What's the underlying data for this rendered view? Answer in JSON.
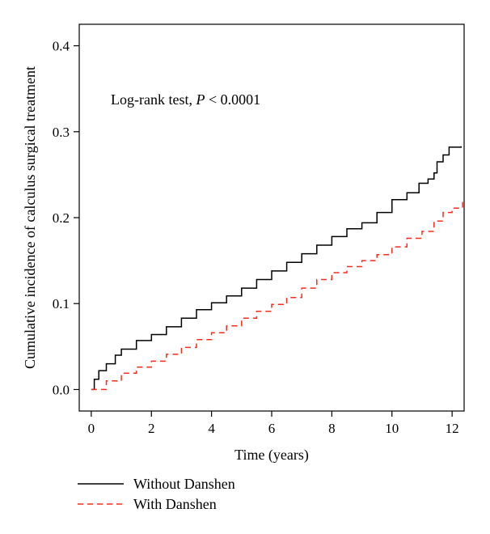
{
  "chart_data": {
    "type": "line",
    "title": "",
    "xlabel": "Time (years)",
    "ylabel": "Cumulative incidence of calculus surgical treatment",
    "xlim": [
      -0.4,
      12.4
    ],
    "ylim": [
      -0.025,
      0.425
    ],
    "x_ticks": [
      0,
      2,
      4,
      6,
      8,
      10,
      12
    ],
    "y_ticks": [
      0.0,
      0.1,
      0.2,
      0.3,
      0.4
    ],
    "x_tick_labels": [
      "0",
      "2",
      "4",
      "6",
      "8",
      "10",
      "12"
    ],
    "y_tick_labels": [
      "0.0",
      "0.1",
      "0.2",
      "0.3",
      "0.4"
    ],
    "grid": false,
    "legend_position": "bottom-left, outside plot",
    "annotation": {
      "prefix": "Log-rank test, ",
      "italic": "P",
      "suffix": " < 0.0001"
    },
    "series": [
      {
        "name": "Without Danshen",
        "color": "#000000",
        "style": "solid",
        "step": true,
        "points": [
          [
            0,
            0.0
          ],
          [
            0.1,
            0.012
          ],
          [
            0.25,
            0.022
          ],
          [
            0.5,
            0.03
          ],
          [
            0.8,
            0.04
          ],
          [
            1.0,
            0.047
          ],
          [
            1.5,
            0.057
          ],
          [
            2.0,
            0.064
          ],
          [
            2.5,
            0.073
          ],
          [
            3.0,
            0.083
          ],
          [
            3.5,
            0.093
          ],
          [
            4.0,
            0.101
          ],
          [
            4.5,
            0.109
          ],
          [
            5.0,
            0.118
          ],
          [
            5.5,
            0.128
          ],
          [
            6.0,
            0.138
          ],
          [
            6.5,
            0.148
          ],
          [
            7.0,
            0.158
          ],
          [
            7.5,
            0.168
          ],
          [
            8.0,
            0.178
          ],
          [
            8.5,
            0.187
          ],
          [
            9.0,
            0.194
          ],
          [
            9.5,
            0.206
          ],
          [
            10.0,
            0.221
          ],
          [
            10.5,
            0.229
          ],
          [
            10.9,
            0.24
          ],
          [
            11.2,
            0.245
          ],
          [
            11.4,
            0.252
          ],
          [
            11.5,
            0.265
          ],
          [
            11.7,
            0.273
          ],
          [
            11.9,
            0.282
          ],
          [
            12.3,
            0.283
          ]
        ]
      },
      {
        "name": "With Danshen",
        "color": "#ff2a1a",
        "style": "dashed",
        "step": true,
        "points": [
          [
            0,
            0.0
          ],
          [
            0.5,
            0.01
          ],
          [
            1.0,
            0.019
          ],
          [
            1.5,
            0.026
          ],
          [
            2.0,
            0.033
          ],
          [
            2.5,
            0.041
          ],
          [
            3.0,
            0.049
          ],
          [
            3.5,
            0.058
          ],
          [
            4.0,
            0.066
          ],
          [
            4.5,
            0.074
          ],
          [
            5.0,
            0.083
          ],
          [
            5.5,
            0.091
          ],
          [
            6.0,
            0.099
          ],
          [
            6.5,
            0.107
          ],
          [
            7.0,
            0.118
          ],
          [
            7.5,
            0.128
          ],
          [
            8.0,
            0.136
          ],
          [
            8.5,
            0.143
          ],
          [
            9.0,
            0.15
          ],
          [
            9.5,
            0.157
          ],
          [
            10.0,
            0.166
          ],
          [
            10.5,
            0.176
          ],
          [
            11.0,
            0.184
          ],
          [
            11.4,
            0.196
          ],
          [
            11.7,
            0.206
          ],
          [
            12.0,
            0.211
          ],
          [
            12.35,
            0.22
          ]
        ]
      }
    ]
  }
}
